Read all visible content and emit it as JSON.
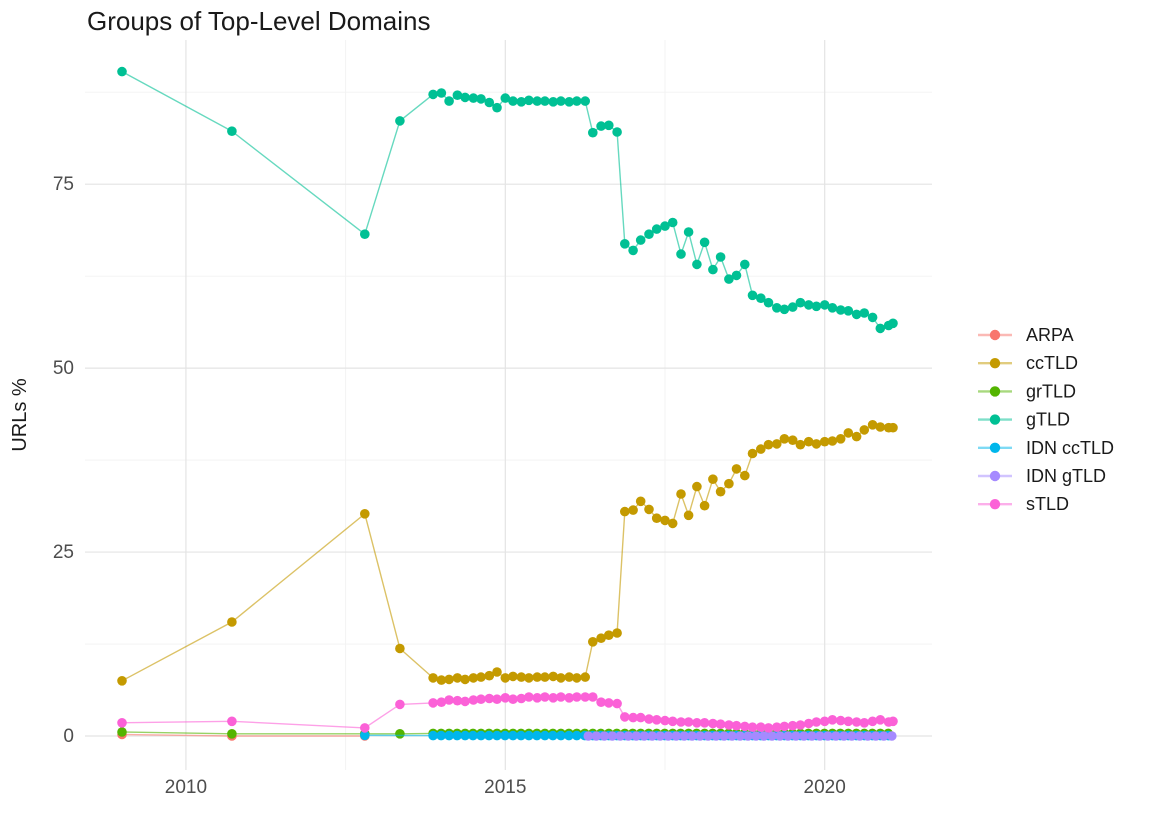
{
  "title": "Groups of Top-Level Domains",
  "chart_data": {
    "type": "scatter",
    "title": "Groups of Top-Level Domains",
    "xlabel": "",
    "ylabel": "URLs %",
    "xlim": [
      2008.42,
      2021.68
    ],
    "ylim": [
      -4.62,
      94.6
    ],
    "x_major_ticks": [
      2010,
      2015,
      2020
    ],
    "x_minor_ticks": [
      2012.5,
      2017.5
    ],
    "y_major_ticks": [
      0,
      25,
      50,
      75
    ],
    "y_minor_ticks": [
      12.5,
      37.5,
      62.5,
      87.5
    ],
    "grid": true,
    "legend_position": "right",
    "series": [
      {
        "name": "ARPA",
        "color": "#F8766D",
        "points": [
          [
            2009.0,
            0.2
          ],
          [
            2010.72,
            0.0
          ],
          [
            2012.8,
            0.0
          ]
        ]
      },
      {
        "name": "ccTLD",
        "color": "#C49A00",
        "points": [
          [
            2009.0,
            7.5
          ],
          [
            2010.72,
            15.5
          ],
          [
            2012.8,
            30.2
          ],
          [
            2013.35,
            11.9
          ],
          [
            2013.87,
            7.9
          ],
          [
            2014.0,
            7.6
          ],
          [
            2014.12,
            7.7
          ],
          [
            2014.25,
            7.9
          ],
          [
            2014.37,
            7.7
          ],
          [
            2014.5,
            7.9
          ],
          [
            2014.62,
            8.0
          ],
          [
            2014.75,
            8.2
          ],
          [
            2014.87,
            8.7
          ],
          [
            2015.0,
            7.9
          ],
          [
            2015.12,
            8.1
          ],
          [
            2015.25,
            8.0
          ],
          [
            2015.37,
            7.9
          ],
          [
            2015.5,
            8.0
          ],
          [
            2015.62,
            8.0
          ],
          [
            2015.75,
            8.1
          ],
          [
            2015.87,
            7.9
          ],
          [
            2016.0,
            8.0
          ],
          [
            2016.12,
            7.9
          ],
          [
            2016.25,
            8.0
          ],
          [
            2016.37,
            12.8
          ],
          [
            2016.5,
            13.3
          ],
          [
            2016.62,
            13.7
          ],
          [
            2016.75,
            14.0
          ],
          [
            2016.87,
            30.5
          ],
          [
            2017.0,
            30.7
          ],
          [
            2017.12,
            31.9
          ],
          [
            2017.25,
            30.8
          ],
          [
            2017.37,
            29.6
          ],
          [
            2017.5,
            29.3
          ],
          [
            2017.62,
            28.9
          ],
          [
            2017.75,
            32.9
          ],
          [
            2017.87,
            30.0
          ],
          [
            2018.0,
            33.9
          ],
          [
            2018.12,
            31.3
          ],
          [
            2018.25,
            34.9
          ],
          [
            2018.37,
            33.2
          ],
          [
            2018.5,
            34.3
          ],
          [
            2018.62,
            36.3
          ],
          [
            2018.75,
            35.4
          ],
          [
            2018.87,
            38.4
          ],
          [
            2019.0,
            39.0
          ],
          [
            2019.12,
            39.6
          ],
          [
            2019.25,
            39.7
          ],
          [
            2019.37,
            40.4
          ],
          [
            2019.5,
            40.2
          ],
          [
            2019.62,
            39.6
          ],
          [
            2019.75,
            40.0
          ],
          [
            2019.87,
            39.7
          ],
          [
            2020.0,
            40.0
          ],
          [
            2020.12,
            40.1
          ],
          [
            2020.25,
            40.4
          ],
          [
            2020.37,
            41.2
          ],
          [
            2020.5,
            40.7
          ],
          [
            2020.62,
            41.6
          ],
          [
            2020.75,
            42.3
          ],
          [
            2020.87,
            42.0
          ],
          [
            2021.0,
            41.9
          ],
          [
            2021.07,
            41.9
          ]
        ]
      },
      {
        "name": "grTLD",
        "color": "#53B400",
        "points": [
          [
            2009.0,
            0.55
          ],
          [
            2010.72,
            0.3
          ],
          [
            2012.8,
            0.3
          ],
          [
            2013.35,
            0.3
          ]
        ],
        "run": {
          "from": 2013.87,
          "to": 2021.07,
          "step": 0.125,
          "y": 0.35
        }
      },
      {
        "name": "gTLD",
        "color": "#00C094",
        "points": [
          [
            2009.0,
            90.3
          ],
          [
            2010.72,
            82.2
          ],
          [
            2012.8,
            68.2
          ],
          [
            2013.35,
            83.6
          ],
          [
            2013.87,
            87.2
          ],
          [
            2014.0,
            87.4
          ],
          [
            2014.12,
            86.3
          ],
          [
            2014.25,
            87.1
          ],
          [
            2014.37,
            86.8
          ],
          [
            2014.5,
            86.7
          ],
          [
            2014.62,
            86.6
          ],
          [
            2014.75,
            86.1
          ],
          [
            2014.87,
            85.4
          ],
          [
            2015.0,
            86.7
          ],
          [
            2015.12,
            86.3
          ],
          [
            2015.25,
            86.2
          ],
          [
            2015.37,
            86.4
          ],
          [
            2015.5,
            86.3
          ],
          [
            2015.62,
            86.3
          ],
          [
            2015.75,
            86.2
          ],
          [
            2015.87,
            86.3
          ],
          [
            2016.0,
            86.2
          ],
          [
            2016.12,
            86.3
          ],
          [
            2016.25,
            86.3
          ],
          [
            2016.37,
            82.0
          ],
          [
            2016.5,
            82.9
          ],
          [
            2016.62,
            83.0
          ],
          [
            2016.75,
            82.1
          ],
          [
            2016.87,
            66.9
          ],
          [
            2017.0,
            66.0
          ],
          [
            2017.12,
            67.4
          ],
          [
            2017.25,
            68.2
          ],
          [
            2017.37,
            68.9
          ],
          [
            2017.5,
            69.3
          ],
          [
            2017.62,
            69.8
          ],
          [
            2017.75,
            65.5
          ],
          [
            2017.87,
            68.5
          ],
          [
            2018.0,
            64.1
          ],
          [
            2018.12,
            67.1
          ],
          [
            2018.25,
            63.4
          ],
          [
            2018.37,
            65.1
          ],
          [
            2018.5,
            62.1
          ],
          [
            2018.62,
            62.6
          ],
          [
            2018.75,
            64.1
          ],
          [
            2018.87,
            59.9
          ],
          [
            2019.0,
            59.5
          ],
          [
            2019.12,
            58.9
          ],
          [
            2019.25,
            58.2
          ],
          [
            2019.37,
            58.0
          ],
          [
            2019.5,
            58.3
          ],
          [
            2019.62,
            58.9
          ],
          [
            2019.75,
            58.6
          ],
          [
            2019.87,
            58.4
          ],
          [
            2020.0,
            58.6
          ],
          [
            2020.12,
            58.2
          ],
          [
            2020.25,
            57.9
          ],
          [
            2020.37,
            57.8
          ],
          [
            2020.5,
            57.3
          ],
          [
            2020.62,
            57.5
          ],
          [
            2020.75,
            56.9
          ],
          [
            2020.87,
            55.4
          ],
          [
            2021.0,
            55.8
          ],
          [
            2021.07,
            56.1
          ]
        ]
      },
      {
        "name": "IDN ccTLD",
        "color": "#00B6EB",
        "points": [
          [
            2012.8,
            0.1
          ]
        ],
        "run": {
          "from": 2013.87,
          "to": 2021.07,
          "step": 0.125,
          "y": 0.05
        }
      },
      {
        "name": "IDN gTLD",
        "color": "#A58AFF",
        "run": {
          "from": 2016.3,
          "to": 2021.07,
          "step": 0.125,
          "y": 0.0
        }
      },
      {
        "name": "sTLD",
        "color": "#FB61D7",
        "points": [
          [
            2009.0,
            1.8
          ],
          [
            2010.72,
            2.0
          ],
          [
            2012.8,
            1.1
          ],
          [
            2013.35,
            4.3
          ],
          [
            2013.87,
            4.5
          ],
          [
            2014.0,
            4.6
          ],
          [
            2014.12,
            4.9
          ],
          [
            2014.25,
            4.8
          ],
          [
            2014.37,
            4.7
          ],
          [
            2014.5,
            4.9
          ],
          [
            2014.62,
            5.0
          ],
          [
            2014.75,
            5.1
          ],
          [
            2014.87,
            5.0
          ],
          [
            2015.0,
            5.2
          ],
          [
            2015.12,
            5.0
          ],
          [
            2015.25,
            5.1
          ],
          [
            2015.37,
            5.3
          ],
          [
            2015.5,
            5.2
          ],
          [
            2015.62,
            5.3
          ],
          [
            2015.75,
            5.2
          ],
          [
            2015.87,
            5.3
          ],
          [
            2016.0,
            5.2
          ],
          [
            2016.12,
            5.3
          ],
          [
            2016.25,
            5.3
          ],
          [
            2016.37,
            5.3
          ],
          [
            2016.5,
            4.6
          ],
          [
            2016.62,
            4.5
          ],
          [
            2016.75,
            4.4
          ],
          [
            2016.87,
            2.6
          ],
          [
            2017.0,
            2.5
          ],
          [
            2017.12,
            2.5
          ],
          [
            2017.25,
            2.3
          ],
          [
            2017.37,
            2.2
          ],
          [
            2017.5,
            2.1
          ],
          [
            2017.62,
            2.0
          ],
          [
            2017.75,
            1.9
          ],
          [
            2017.87,
            1.9
          ],
          [
            2018.0,
            1.8
          ],
          [
            2018.12,
            1.8
          ],
          [
            2018.25,
            1.7
          ],
          [
            2018.37,
            1.6
          ],
          [
            2018.5,
            1.5
          ],
          [
            2018.62,
            1.4
          ],
          [
            2018.75,
            1.3
          ],
          [
            2018.87,
            1.2
          ],
          [
            2019.0,
            1.2
          ],
          [
            2019.12,
            1.1
          ],
          [
            2019.25,
            1.2
          ],
          [
            2019.37,
            1.3
          ],
          [
            2019.5,
            1.4
          ],
          [
            2019.62,
            1.5
          ],
          [
            2019.75,
            1.7
          ],
          [
            2019.87,
            1.9
          ],
          [
            2020.0,
            2.0
          ],
          [
            2020.12,
            2.2
          ],
          [
            2020.25,
            2.1
          ],
          [
            2020.37,
            2.0
          ],
          [
            2020.5,
            1.9
          ],
          [
            2020.62,
            1.8
          ],
          [
            2020.75,
            2.0
          ],
          [
            2020.87,
            2.2
          ],
          [
            2021.0,
            1.9
          ],
          [
            2021.07,
            2.0
          ]
        ]
      }
    ]
  },
  "legend": {
    "items": [
      {
        "label": "ARPA",
        "color": "#F8766D"
      },
      {
        "label": "ccTLD",
        "color": "#C49A00"
      },
      {
        "label": "grTLD",
        "color": "#53B400"
      },
      {
        "label": "gTLD",
        "color": "#00C094"
      },
      {
        "label": "IDN ccTLD",
        "color": "#00B6EB"
      },
      {
        "label": "IDN gTLD",
        "color": "#A58AFF"
      },
      {
        "label": "sTLD",
        "color": "#FB61D7"
      }
    ]
  },
  "style": {
    "background": "#ffffff",
    "grid_major_color": "#e4e4e4",
    "grid_minor_color": "#f2f2f2",
    "tick_label_color": "#4d4d4d",
    "text_color": "#1a1a1a"
  }
}
